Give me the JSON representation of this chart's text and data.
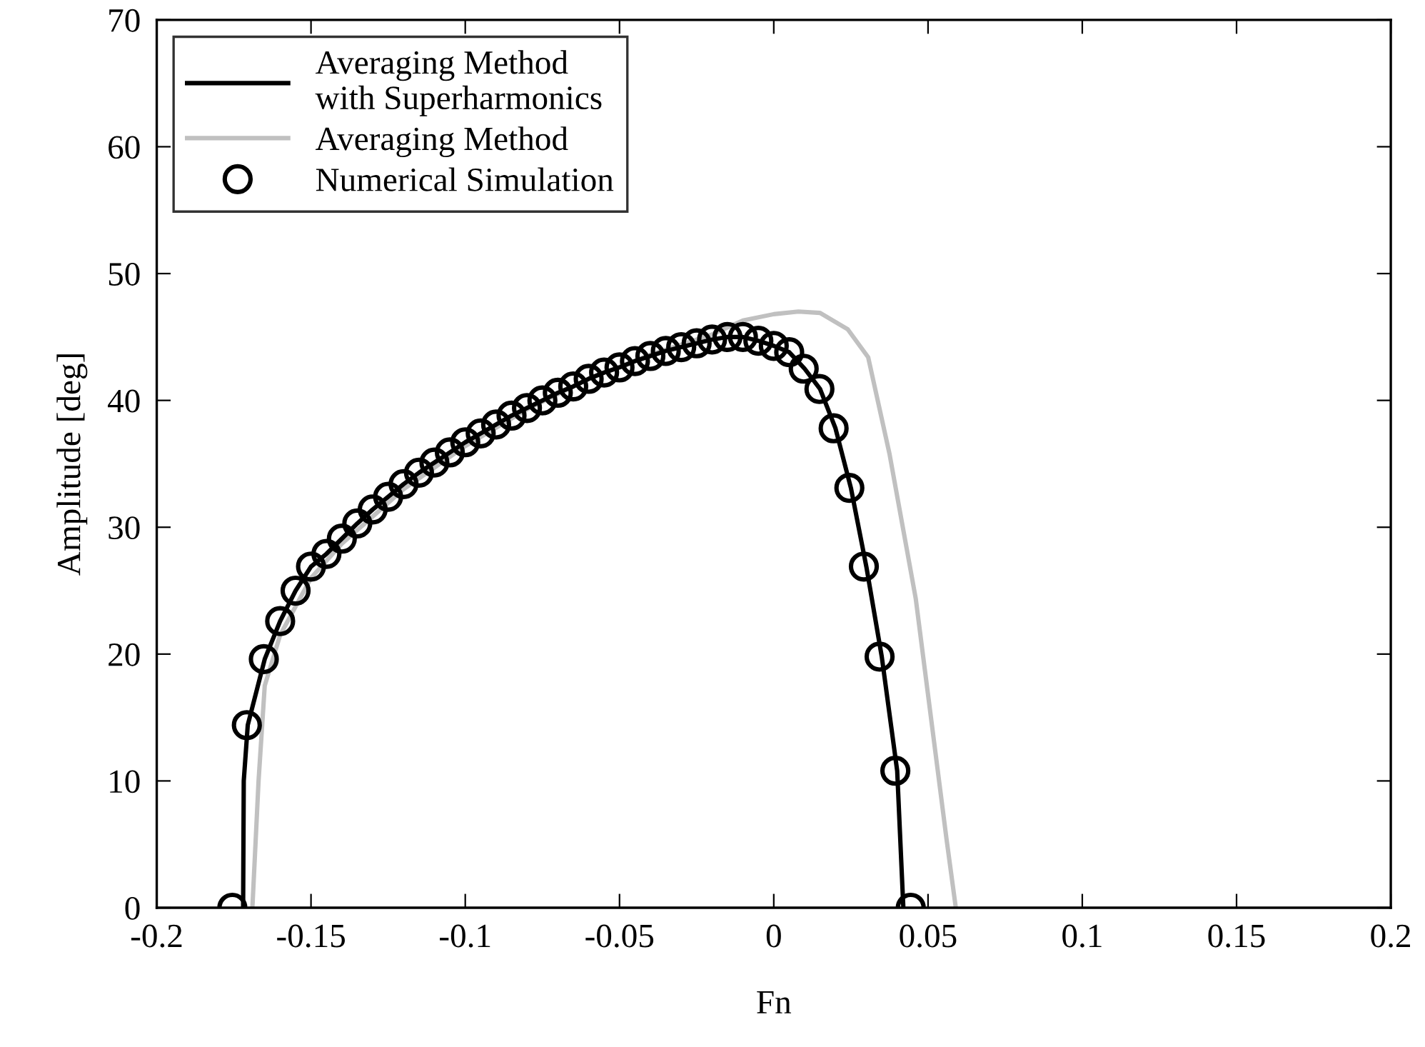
{
  "chart_data": {
    "type": "line",
    "xlabel": "Fn",
    "ylabel": "Amplitude [deg]",
    "xlim": [
      -0.2,
      0.2
    ],
    "xticks": [
      -0.2,
      -0.15,
      -0.1,
      -0.05,
      0,
      0.05,
      0.1,
      0.15,
      0.2
    ],
    "ylim": [
      0,
      70
    ],
    "yticks": [
      0,
      10,
      20,
      30,
      40,
      50,
      60,
      70
    ],
    "grid": false,
    "legend": "top left",
    "series": [
      {
        "name": "Averaging Method\nwith Superharmonics",
        "color": "#000000",
        "marker": "none",
        "line_style": "solid",
        "x": [
          -0.172,
          -0.1718,
          -0.1705,
          -0.165,
          -0.16,
          -0.155,
          -0.15,
          -0.145,
          -0.14,
          -0.135,
          -0.13,
          -0.125,
          -0.12,
          -0.115,
          -0.11,
          -0.105,
          -0.1,
          -0.095,
          -0.09,
          -0.085,
          -0.08,
          -0.075,
          -0.07,
          -0.065,
          -0.06,
          -0.055,
          -0.05,
          -0.045,
          -0.04,
          -0.035,
          -0.03,
          -0.025,
          -0.02,
          -0.015,
          -0.01,
          -0.005,
          0,
          0.005,
          0.01,
          0.015,
          0.02,
          0.025,
          0.03,
          0.035,
          0.04,
          0.042
        ],
        "values": [
          0,
          10,
          14.4,
          19.6,
          22.6,
          25.0,
          26.9,
          27.9,
          29.1,
          30.3,
          31.4,
          32.4,
          33.4,
          34.3,
          35.1,
          35.9,
          36.7,
          37.4,
          38.1,
          38.8,
          39.4,
          40.0,
          40.6,
          41.1,
          41.7,
          42.2,
          42.6,
          43.1,
          43.5,
          43.9,
          44.2,
          44.5,
          44.8,
          45.0,
          45.0,
          44.7,
          44.3,
          43.8,
          42.5,
          40.9,
          37.8,
          33.1,
          26.9,
          19.8,
          10.8,
          0
        ]
      },
      {
        "name": "Averaging Method",
        "color": "#c0c0c0",
        "marker": "none",
        "line_style": "solid",
        "x": [
          -0.169,
          -0.167,
          -0.165,
          -0.16,
          -0.15,
          -0.14,
          -0.12,
          -0.1,
          -0.08,
          -0.06,
          -0.04,
          -0.02,
          -0.01,
          0,
          0.008,
          0.015,
          0.024,
          0.0306,
          0.0375,
          0.046,
          0.052,
          0.056,
          0.059
        ],
        "values": [
          0,
          10,
          17.5,
          21.5,
          26,
          28.7,
          33.0,
          36.4,
          39.3,
          41.7,
          43.6,
          45.2,
          46.3,
          46.8,
          47.0,
          46.9,
          45.6,
          43.4,
          35.8,
          24.4,
          13,
          5.4,
          0
        ]
      },
      {
        "name": "Numerical Simulation",
        "type": "scatter",
        "color": "#000000",
        "marker": "circle",
        "x": [
          -0.1755,
          -0.1708,
          -0.1653,
          -0.16,
          -0.155,
          -0.15,
          -0.145,
          -0.14,
          -0.135,
          -0.13,
          -0.125,
          -0.12,
          -0.115,
          -0.11,
          -0.105,
          -0.1,
          -0.095,
          -0.09,
          -0.085,
          -0.08,
          -0.075,
          -0.07,
          -0.065,
          -0.06,
          -0.055,
          -0.05,
          -0.045,
          -0.04,
          -0.035,
          -0.03,
          -0.025,
          -0.02,
          -0.015,
          -0.01,
          -0.005,
          0,
          0.005,
          0.0097,
          0.0148,
          0.0194,
          0.0245,
          0.0292,
          0.0343,
          0.0394,
          0.0444
        ],
        "values": [
          0,
          14.4,
          19.6,
          22.6,
          25.0,
          26.9,
          27.9,
          29.1,
          30.3,
          31.4,
          32.4,
          33.4,
          34.3,
          35.1,
          35.9,
          36.7,
          37.4,
          38.1,
          38.8,
          39.4,
          40.0,
          40.6,
          41.1,
          41.7,
          42.2,
          42.6,
          43.1,
          43.5,
          43.9,
          44.2,
          44.5,
          44.8,
          45.0,
          45.0,
          44.7,
          44.3,
          43.8,
          42.5,
          40.9,
          37.8,
          33.1,
          26.9,
          19.8,
          10.8,
          0
        ]
      }
    ]
  }
}
